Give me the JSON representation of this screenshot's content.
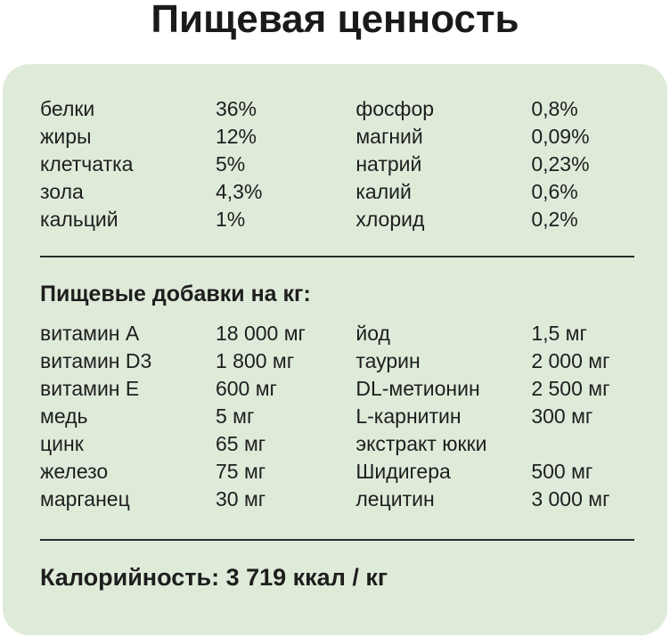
{
  "title": "Пищевая ценность",
  "nutrients": [
    [
      "белки",
      "36%",
      "фосфор",
      "0,8%"
    ],
    [
      "жиры",
      "12%",
      "магний",
      "0,09%"
    ],
    [
      "клетчатка",
      "5%",
      "натрий",
      "0,23%"
    ],
    [
      "зола",
      "4,3%",
      "калий",
      "0,6%"
    ],
    [
      "кальций",
      "1%",
      "хлорид",
      "0,2%"
    ]
  ],
  "additives_heading": "Пищевые добавки на кг:",
  "additives": [
    [
      "витамин А",
      "18 000 мг",
      "йод",
      "1,5 мг"
    ],
    [
      "витамин D3",
      "1 800 мг",
      "таурин",
      "2 000 мг"
    ],
    [
      "витамин Е",
      "600 мг",
      "DL-метионин",
      "2 500 мг"
    ],
    [
      "медь",
      "5 мг",
      "L-карнитин",
      "300 мг"
    ],
    [
      "цинк",
      "65 мг",
      "экстракт юкки",
      ""
    ],
    [
      "железо",
      "75 мг",
      "Шидигера",
      "500 мг"
    ],
    [
      "марганец",
      "30 мг",
      "лецитин",
      "3 000 мг"
    ]
  ],
  "calories": "Калорийность: 3 719 ккал / кг",
  "colors": {
    "card": "#deebd9",
    "text": "#1e1e1e"
  }
}
